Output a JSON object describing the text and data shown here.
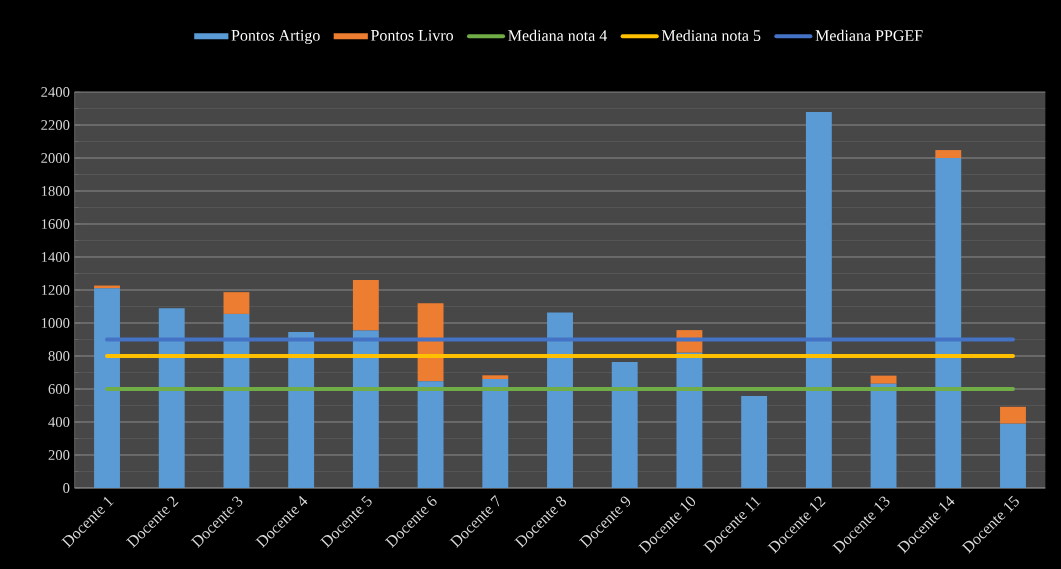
{
  "chart_data": {
    "type": "bar",
    "stacked": true,
    "categories": [
      "Docente 1",
      "Docente 2",
      "Docente 3",
      "Docente 4",
      "Docente 5",
      "Docente 6",
      "Docente 7",
      "Docente 8",
      "Docente 9",
      "Docente 10",
      "Docente 11",
      "Docente 12",
      "Docente 13",
      "Docente 14",
      "Docente 15"
    ],
    "series": [
      {
        "name": "Pontos Artigo",
        "color": "#5b9bd5",
        "values": [
          1210,
          1090,
          1055,
          945,
          955,
          647,
          660,
          1064,
          764,
          820,
          557,
          2279,
          632,
          2000,
          390
        ]
      },
      {
        "name": "Pontos Livro",
        "color": "#ed7d31",
        "values": [
          17,
          0,
          132,
          0,
          305,
          473,
          23,
          0,
          0,
          137,
          0,
          0,
          49,
          48,
          102
        ]
      },
      {
        "name": "Mediana nota 4",
        "type": "line",
        "color": "#70ad47",
        "values": [
          600,
          600,
          600,
          600,
          600,
          600,
          600,
          600,
          600,
          600,
          600,
          600,
          600,
          600,
          600
        ]
      },
      {
        "name": "Mediana nota 5",
        "type": "line",
        "color": "#ffc000",
        "values": [
          800,
          800,
          800,
          800,
          800,
          800,
          800,
          800,
          800,
          800,
          800,
          800,
          800,
          800,
          800
        ]
      },
      {
        "name": "Mediana PPGEF",
        "type": "line",
        "color": "#4472c4",
        "values": [
          900,
          900,
          900,
          900,
          900,
          900,
          900,
          900,
          900,
          900,
          900,
          900,
          900,
          900,
          900
        ]
      }
    ],
    "ylim": [
      0,
      2400
    ],
    "yticks": [
      0,
      200,
      400,
      600,
      800,
      1000,
      1200,
      1400,
      1600,
      1800,
      2000,
      2200,
      2400
    ],
    "grid": "y",
    "legend": "top"
  }
}
